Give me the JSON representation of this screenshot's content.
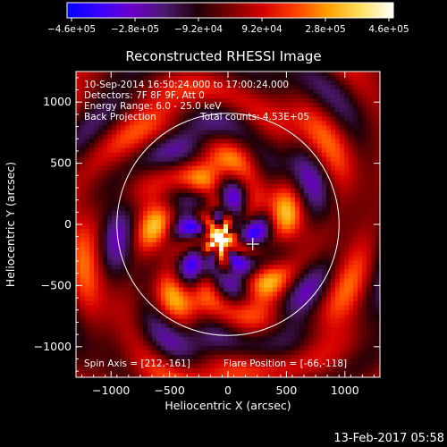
{
  "chart_data": {
    "type": "heatmap",
    "title": "Reconstructed RHESSI Image",
    "xlabel": "Heliocentric X (arcsec)",
    "ylabel": "Heliocentric Y (arcsec)",
    "xlim": [
      -1300,
      1300
    ],
    "ylim": [
      -1250,
      1250
    ],
    "xticks": [
      -1000,
      -500,
      0,
      500,
      1000
    ],
    "xtick_labels": [
      "−1000",
      "−500",
      "0",
      "500",
      "1000"
    ],
    "yticks": [
      -1000,
      -500,
      0,
      500,
      1000
    ],
    "ytick_labels": [
      "−1000",
      "−500",
      "0",
      "500",
      "1000"
    ],
    "colorbar": {
      "min": -460000,
      "max": 460000,
      "tick_labels": [
        "−4.6e+05",
        "−2.8e+05",
        "−9.2e+04",
        "9.2e+04",
        "2.8e+05",
        "4.6e+05"
      ],
      "colors": [
        "#0000ff",
        "#3a00ff",
        "#6a00c8",
        "#4a1a6e",
        "#200008",
        "#7a0000",
        "#d40000",
        "#ff4000",
        "#ffa000",
        "#ffe060",
        "#ffffff"
      ]
    },
    "solar_disk": {
      "center": [
        0,
        0
      ],
      "radius": 950
    },
    "flare_position": [
      -66,
      -118
    ],
    "marker_position": [
      212,
      -161
    ],
    "annotations": [
      "10-Sep-2014 16:50:24.000 to 17:00:24.000",
      "Detectors: 7F 8F 9F, Att 0",
      "Energy Range: 6.0 - 25.0 keV",
      "Back Projection",
      "Total counts: 4.53E+05"
    ],
    "bottom_left_note": "Spin Axis = [212,-161]",
    "bottom_right_note": "Flare Position = [-66,-118]"
  },
  "footer": {
    "timestamp": "13-Feb-2017 05:58"
  }
}
